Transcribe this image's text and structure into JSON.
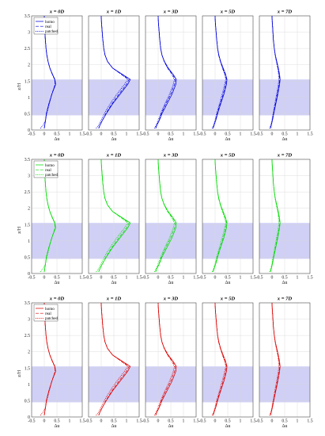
{
  "chart_data": {
    "type": "line",
    "ylabel": "z/H",
    "xlabel": "Δu",
    "xlim": [
      -0.5,
      1.5
    ],
    "ylim": [
      0,
      3.5
    ],
    "xticks": [
      "-0.5",
      "0",
      "0.5",
      "1",
      "1.5"
    ],
    "yticks": [
      "0",
      "0.5",
      "1",
      "1.5",
      "2",
      "2.5",
      "3",
      "3.5"
    ],
    "grid": true,
    "shaded_band": [
      0.45,
      1.55
    ],
    "shaded_color": "#c8c8f4",
    "legend": {
      "placement": "top-left",
      "entries": [
        "homo",
        "real",
        "patched"
      ]
    },
    "row_colors": [
      "#0000dd",
      "#00dd00",
      "#dd0000"
    ],
    "columns": [
      {
        "title": "x = 0D",
        "series": [
          {
            "name": "homo",
            "x": [
              0.0,
              0.02,
              0.05,
              0.08,
              0.18,
              0.3,
              0.45,
              0.42,
              0.33,
              0.22,
              0.15,
              0.1,
              0.07,
              0.04,
              0.02,
              0.01,
              0.0
            ],
            "y": [
              0.05,
              0.15,
              0.3,
              0.5,
              0.8,
              1.1,
              1.4,
              1.55,
              1.7,
              1.9,
              2.1,
              2.3,
              2.5,
              2.8,
              3.1,
              3.3,
              3.5
            ]
          },
          {
            "name": "real",
            "x": [
              0.0,
              0.02,
              0.05,
              0.08,
              0.18,
              0.3,
              0.43,
              0.41,
              0.32,
              0.22,
              0.15,
              0.1,
              0.07,
              0.04,
              0.02,
              0.01,
              0.0
            ],
            "y": [
              0.05,
              0.15,
              0.3,
              0.5,
              0.8,
              1.1,
              1.4,
              1.55,
              1.7,
              1.9,
              2.1,
              2.3,
              2.5,
              2.8,
              3.1,
              3.3,
              3.5
            ]
          },
          {
            "name": "patched",
            "x": [
              -0.15,
              -0.05,
              0.05,
              0.1,
              0.2,
              0.3,
              0.43,
              0.41,
              0.32,
              0.22,
              0.15,
              0.1,
              0.07,
              0.04,
              0.02,
              0.01,
              0.0
            ],
            "y": [
              0.05,
              0.15,
              0.3,
              0.5,
              0.8,
              1.1,
              1.4,
              1.55,
              1.7,
              1.9,
              2.1,
              2.3,
              2.5,
              2.8,
              3.1,
              3.3,
              3.5
            ]
          }
        ]
      },
      {
        "title": "x = 1D",
        "series": [
          {
            "name": "homo",
            "x": [
              -0.1,
              -0.05,
              0.05,
              0.2,
              0.45,
              0.75,
              1.05,
              1.15,
              0.85,
              0.45,
              0.25,
              0.15,
              0.1,
              0.06,
              0.03,
              0.01,
              0.0
            ],
            "y": [
              0.05,
              0.15,
              0.3,
              0.5,
              0.8,
              1.1,
              1.4,
              1.55,
              1.7,
              1.9,
              2.1,
              2.3,
              2.5,
              2.8,
              3.1,
              3.3,
              3.5
            ]
          },
          {
            "name": "real",
            "x": [
              -0.1,
              -0.05,
              0.05,
              0.18,
              0.42,
              0.7,
              1.0,
              1.1,
              0.82,
              0.45,
              0.25,
              0.15,
              0.1,
              0.06,
              0.03,
              0.01,
              0.0
            ],
            "y": [
              0.05,
              0.15,
              0.3,
              0.5,
              0.8,
              1.1,
              1.4,
              1.55,
              1.7,
              1.9,
              2.1,
              2.3,
              2.5,
              2.8,
              3.1,
              3.3,
              3.5
            ]
          },
          {
            "name": "patched",
            "x": [
              -0.2,
              -0.1,
              0.0,
              0.12,
              0.35,
              0.62,
              0.92,
              1.05,
              0.8,
              0.45,
              0.25,
              0.15,
              0.1,
              0.06,
              0.03,
              0.01,
              0.0
            ],
            "y": [
              0.05,
              0.15,
              0.3,
              0.5,
              0.8,
              1.1,
              1.4,
              1.55,
              1.7,
              1.9,
              2.1,
              2.3,
              2.5,
              2.8,
              3.1,
              3.3,
              3.5
            ]
          }
        ]
      },
      {
        "title": "x = 3D",
        "series": [
          {
            "name": "homo",
            "x": [
              -0.1,
              -0.05,
              0.05,
              0.15,
              0.35,
              0.55,
              0.7,
              0.72,
              0.6,
              0.4,
              0.25,
              0.15,
              0.1,
              0.06,
              0.03,
              0.01,
              0.0
            ],
            "y": [
              0.05,
              0.15,
              0.3,
              0.5,
              0.8,
              1.1,
              1.4,
              1.55,
              1.7,
              1.9,
              2.1,
              2.3,
              2.5,
              2.8,
              3.1,
              3.3,
              3.5
            ]
          },
          {
            "name": "real",
            "x": [
              -0.1,
              -0.05,
              0.04,
              0.12,
              0.3,
              0.5,
              0.65,
              0.68,
              0.57,
              0.38,
              0.24,
              0.15,
              0.1,
              0.06,
              0.03,
              0.01,
              0.0
            ],
            "y": [
              0.05,
              0.15,
              0.3,
              0.5,
              0.8,
              1.1,
              1.4,
              1.55,
              1.7,
              1.9,
              2.1,
              2.3,
              2.5,
              2.8,
              3.1,
              3.3,
              3.5
            ]
          },
          {
            "name": "patched",
            "x": [
              -0.15,
              -0.08,
              0.0,
              0.1,
              0.26,
              0.45,
              0.6,
              0.64,
              0.55,
              0.37,
              0.24,
              0.15,
              0.1,
              0.06,
              0.03,
              0.01,
              0.0
            ],
            "y": [
              0.05,
              0.15,
              0.3,
              0.5,
              0.8,
              1.1,
              1.4,
              1.55,
              1.7,
              1.9,
              2.1,
              2.3,
              2.5,
              2.8,
              3.1,
              3.3,
              3.5
            ]
          }
        ]
      },
      {
        "title": "x = 5D",
        "series": [
          {
            "name": "homo",
            "x": [
              -0.08,
              -0.04,
              0.03,
              0.1,
              0.22,
              0.35,
              0.45,
              0.47,
              0.42,
              0.32,
              0.22,
              0.15,
              0.1,
              0.06,
              0.03,
              0.01,
              0.0
            ],
            "y": [
              0.05,
              0.15,
              0.3,
              0.5,
              0.8,
              1.1,
              1.4,
              1.55,
              1.7,
              1.9,
              2.1,
              2.3,
              2.5,
              2.8,
              3.1,
              3.3,
              3.5
            ]
          },
          {
            "name": "real",
            "x": [
              -0.08,
              -0.04,
              0.02,
              0.08,
              0.2,
              0.32,
              0.42,
              0.45,
              0.4,
              0.3,
              0.21,
              0.14,
              0.1,
              0.06,
              0.03,
              0.01,
              0.0
            ],
            "y": [
              0.05,
              0.15,
              0.3,
              0.5,
              0.8,
              1.1,
              1.4,
              1.55,
              1.7,
              1.9,
              2.1,
              2.3,
              2.5,
              2.8,
              3.1,
              3.3,
              3.5
            ]
          },
          {
            "name": "patched",
            "x": [
              -0.12,
              -0.06,
              0.0,
              0.06,
              0.17,
              0.28,
              0.38,
              0.42,
              0.38,
              0.29,
              0.21,
              0.14,
              0.1,
              0.06,
              0.03,
              0.01,
              0.0
            ],
            "y": [
              0.05,
              0.15,
              0.3,
              0.5,
              0.8,
              1.1,
              1.4,
              1.55,
              1.7,
              1.9,
              2.1,
              2.3,
              2.5,
              2.8,
              3.1,
              3.3,
              3.5
            ]
          }
        ]
      },
      {
        "title": "x = 7D",
        "series": [
          {
            "name": "homo",
            "x": [
              -0.06,
              -0.03,
              0.02,
              0.07,
              0.15,
              0.23,
              0.3,
              0.32,
              0.3,
              0.25,
              0.19,
              0.13,
              0.09,
              0.05,
              0.03,
              0.01,
              0.0
            ],
            "y": [
              0.05,
              0.15,
              0.3,
              0.5,
              0.8,
              1.1,
              1.4,
              1.55,
              1.7,
              1.9,
              2.1,
              2.3,
              2.5,
              2.8,
              3.1,
              3.3,
              3.5
            ]
          },
          {
            "name": "real",
            "x": [
              -0.06,
              -0.03,
              0.01,
              0.06,
              0.13,
              0.21,
              0.28,
              0.3,
              0.28,
              0.24,
              0.18,
              0.13,
              0.09,
              0.05,
              0.03,
              0.01,
              0.0
            ],
            "y": [
              0.05,
              0.15,
              0.3,
              0.5,
              0.8,
              1.1,
              1.4,
              1.55,
              1.7,
              1.9,
              2.1,
              2.3,
              2.5,
              2.8,
              3.1,
              3.3,
              3.5
            ]
          },
          {
            "name": "patched",
            "x": [
              -0.1,
              -0.05,
              0.0,
              0.04,
              0.11,
              0.18,
              0.25,
              0.27,
              0.26,
              0.22,
              0.17,
              0.12,
              0.09,
              0.05,
              0.03,
              0.01,
              0.0
            ],
            "y": [
              0.05,
              0.15,
              0.3,
              0.5,
              0.8,
              1.1,
              1.4,
              1.55,
              1.7,
              1.9,
              2.1,
              2.3,
              2.5,
              2.8,
              3.1,
              3.3,
              3.5
            ]
          }
        ]
      }
    ]
  }
}
